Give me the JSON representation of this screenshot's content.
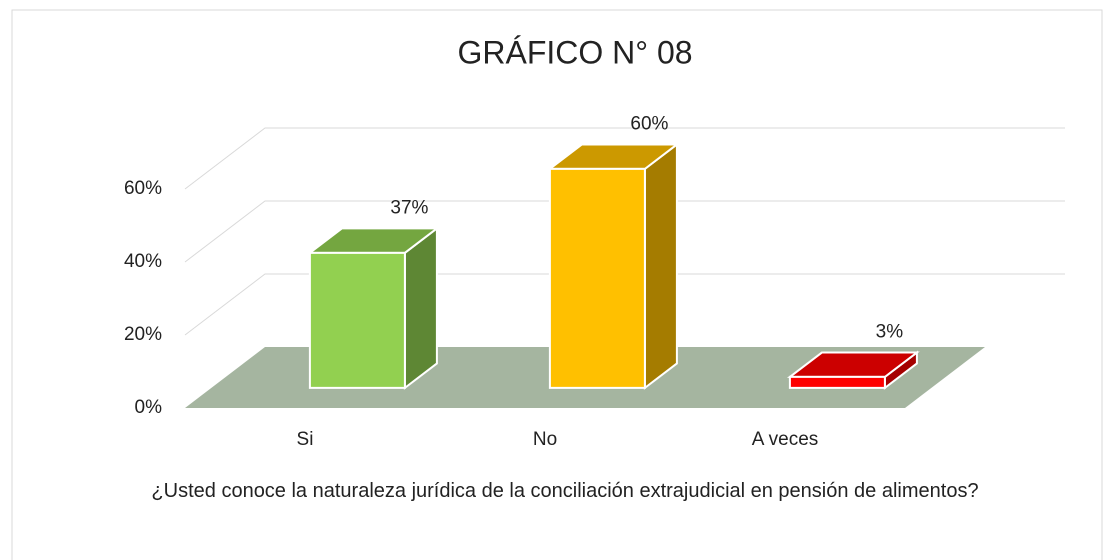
{
  "chart_data": {
    "type": "bar3d",
    "title": "GRÁFICO N° 08",
    "categories": [
      "Si",
      "No",
      "A veces"
    ],
    "values": [
      37,
      60,
      3
    ],
    "value_labels": [
      "37%",
      "60%",
      "3%"
    ],
    "colors": [
      "#92d050",
      "#ffc000",
      "#ff0000"
    ],
    "ylim": [
      0,
      60
    ],
    "yticks": [
      {
        "value": 0,
        "label": "0%"
      },
      {
        "value": 20,
        "label": "20%"
      },
      {
        "value": 40,
        "label": "40%"
      },
      {
        "value": 60,
        "label": "60%"
      }
    ],
    "grid": true,
    "floor_color": "#a5b5a0",
    "xlabel": "¿Usted conoce la naturaleza jurídica de la conciliación extrajudicial en pensión de alimentos?"
  }
}
